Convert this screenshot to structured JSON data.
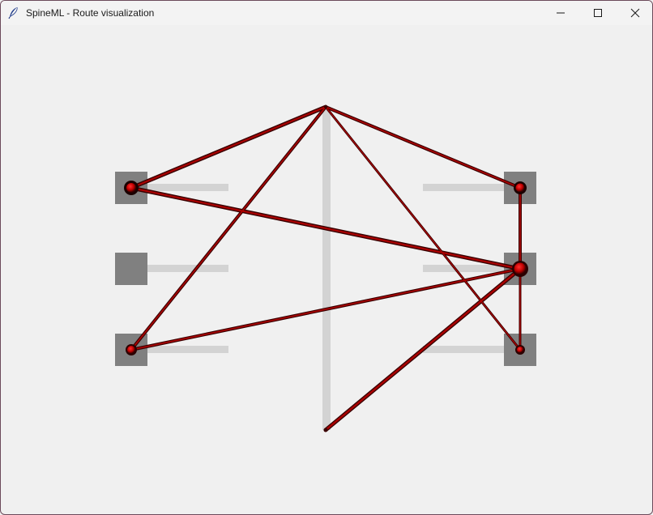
{
  "window": {
    "title": "SpineML - Route visualization",
    "app_icon": "feather-icon",
    "controls": {
      "minimize": "minimize-icon",
      "maximize": "maximize-icon",
      "close": "close-icon"
    }
  },
  "colors": {
    "background": "#f0f0f0",
    "node_box": "#808080",
    "guide": "#d3d3d3",
    "route": "#8b0000",
    "route_highlight": "#c00000",
    "node_marker": "#d00000"
  }
}
